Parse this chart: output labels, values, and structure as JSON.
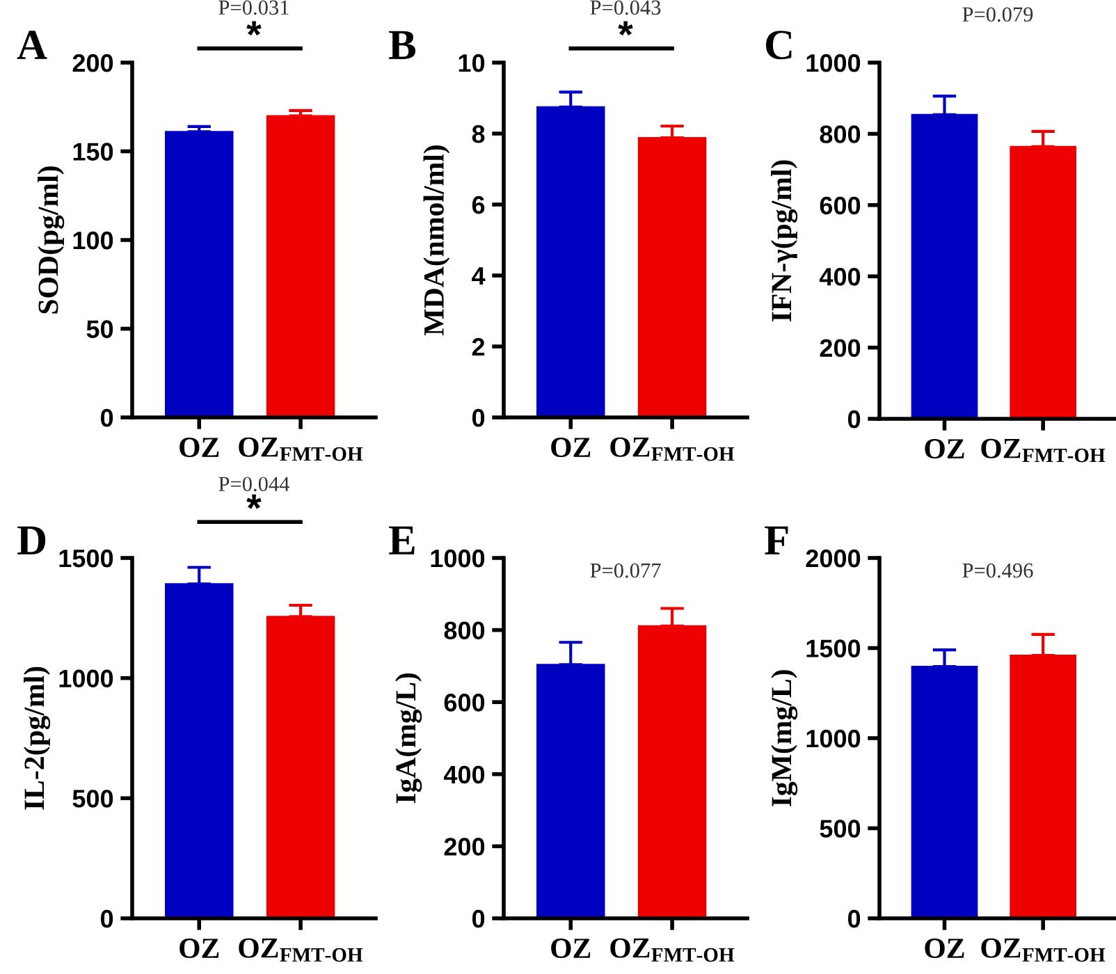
{
  "chart_data": [
    {
      "type": "bar",
      "title": "A",
      "ylabel": "SOD(pg/ml)",
      "categories": [
        "OZ",
        "OZ$_{FMT-OH}$"
      ],
      "values": [
        161,
        170
      ],
      "colors": [
        "#0000c0",
        "#ee0000"
      ],
      "errors": [
        [
          161,
          164
        ],
        [
          170,
          173
        ]
      ],
      "ylim": [
        0,
        200
      ],
      "yticks": [
        0,
        50,
        100,
        150,
        200
      ],
      "annotations": [
        "P=0.031",
        "*"
      ]
    },
    {
      "type": "bar",
      "title": "B",
      "ylabel": "MDA(nmol/ml)",
      "categories": [
        "OZ",
        "OZ$_{FMT-OH}$"
      ],
      "values": [
        8.75,
        7.88
      ],
      "colors": [
        "#0000c0",
        "#ee0000"
      ],
      "errors": [
        [
          8.75,
          9.17
        ],
        [
          7.88,
          8.21
        ]
      ],
      "ylim": [
        0,
        10
      ],
      "yticks": [
        0,
        2,
        4,
        6,
        8,
        10
      ],
      "annotations": [
        "P=0.043",
        "*"
      ]
    },
    {
      "type": "bar",
      "title": "C",
      "ylabel": "IFN-γ(pg/ml)",
      "categories": [
        "OZ",
        "OZ$_{FMT-OH}$"
      ],
      "values": [
        854,
        764
      ],
      "colors": [
        "#0000c0",
        "#ee0000"
      ],
      "errors": [
        [
          854,
          906
        ],
        [
          764,
          807
        ]
      ],
      "ylim": [
        0,
        1000
      ],
      "yticks": [
        0,
        200,
        400,
        600,
        800,
        1000
      ],
      "annotations": [
        "P=0.079"
      ]
    },
    {
      "type": "bar",
      "title": "D",
      "ylabel": "IL-2(pg/ml)",
      "categories": [
        "OZ",
        "OZ$_{FMT-OH}$"
      ],
      "values": [
        1392,
        1256
      ],
      "colors": [
        "#0000c0",
        "#ee0000"
      ],
      "errors": [
        [
          1392,
          1461
        ],
        [
          1256,
          1303
        ]
      ],
      "ylim": [
        0,
        1500
      ],
      "yticks": [
        0,
        500,
        1000,
        1500
      ],
      "annotations": [
        "P=0.044",
        "*"
      ]
    },
    {
      "type": "bar",
      "title": "E",
      "ylabel": "IgA(mg/L)",
      "categories": [
        "OZ",
        "OZ$_{FMT-OH}$"
      ],
      "values": [
        704,
        811
      ],
      "colors": [
        "#0000c0",
        "#ee0000"
      ],
      "errors": [
        [
          704,
          766
        ],
        [
          811,
          860
        ]
      ],
      "ylim": [
        0,
        1000
      ],
      "yticks": [
        0,
        200,
        400,
        600,
        800,
        1000
      ],
      "annotations": [
        "P=0.077"
      ]
    },
    {
      "type": "bar",
      "title": "F",
      "ylabel": "IgM(mg/L)",
      "categories": [
        "OZ",
        "OZ$_{FMT-OH}$"
      ],
      "values": [
        1397,
        1459
      ],
      "colors": [
        "#0000c0",
        "#ee0000"
      ],
      "errors": [
        [
          1397,
          1490
        ],
        [
          1459,
          1576
        ]
      ],
      "ylim": [
        0,
        2000
      ],
      "yticks": [
        0,
        500,
        1000,
        1500,
        2000
      ],
      "annotations": [
        "P=0.496"
      ]
    }
  ]
}
